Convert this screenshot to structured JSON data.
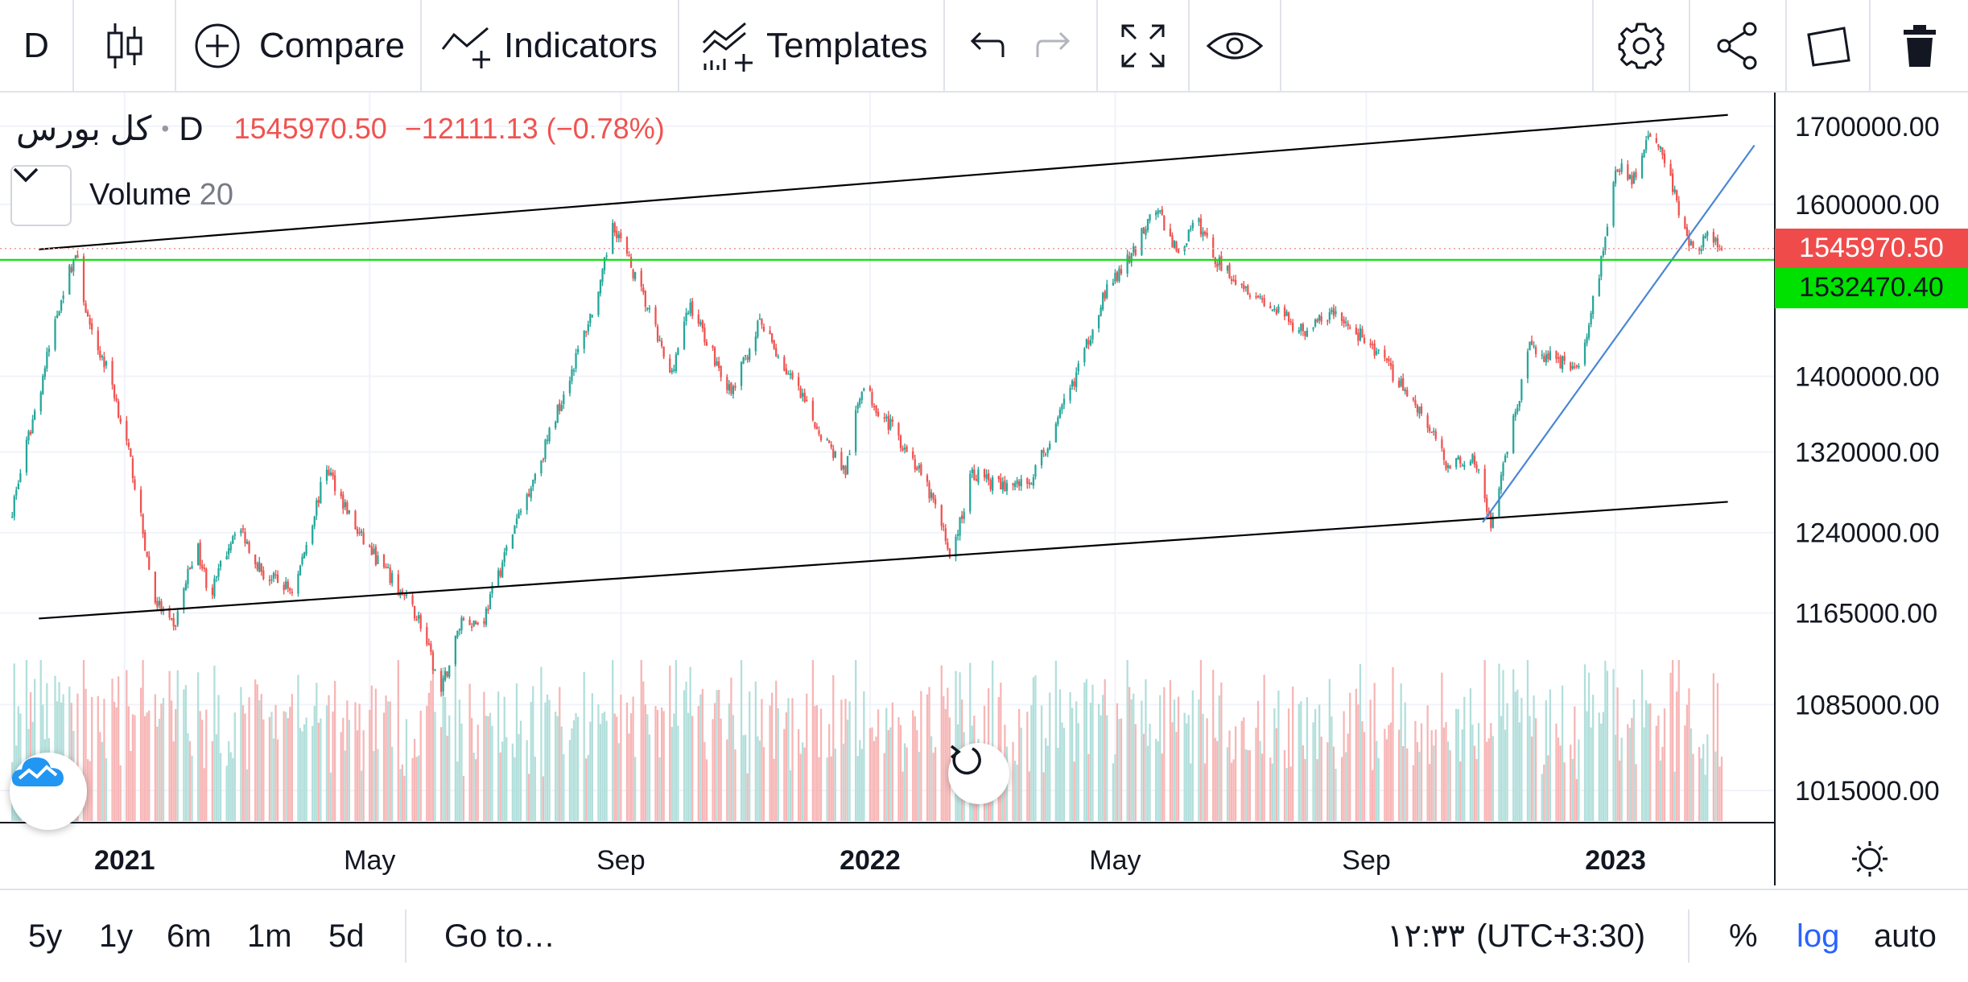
{
  "toolbar": {
    "interval_label": "D",
    "compare_label": "Compare",
    "indicators_label": "Indicators",
    "templates_label": "Templates",
    "icons": [
      "candles-icon",
      "plus-circle-icon",
      "indicators-icon",
      "templates-icon",
      "undo-icon",
      "redo-icon",
      "fullscreen-icon",
      "eye-icon",
      "gear-icon",
      "share-icon",
      "snapshot-icon",
      "trash-icon"
    ]
  },
  "legend": {
    "symbol": "کل بورس",
    "interval": "D",
    "last_price": "1545970.50",
    "change": "−12111.13 (−0.78%)",
    "volume_name": "Volume",
    "volume_length": "20"
  },
  "price_axis": {
    "labels": [
      "1700000.00",
      "1600000.00",
      "1400000.00",
      "1320000.00",
      "1240000.00",
      "1165000.00",
      "1085000.00",
      "1015000.00"
    ],
    "last_price_tag": "1545970.50",
    "last_price_color": "#f04b4b",
    "line_tag": "1532470.40",
    "line_tag_color": "#00e100",
    "scale": "log"
  },
  "time_axis": {
    "labels": [
      {
        "text": "2021",
        "bold": true
      },
      {
        "text": "May",
        "bold": false
      },
      {
        "text": "Sep",
        "bold": false
      },
      {
        "text": "2022",
        "bold": true
      },
      {
        "text": "May",
        "bold": false
      },
      {
        "text": "Sep",
        "bold": false
      },
      {
        "text": "2023",
        "bold": true
      }
    ]
  },
  "bottom_bar": {
    "ranges": [
      "5y",
      "1y",
      "6m",
      "1m",
      "5d"
    ],
    "goto_label": "Go to…",
    "time": "۱۲:۳۳",
    "timezone": "(UTC+3:30)",
    "percent_label": "%",
    "log_label": "log",
    "auto_label": "auto",
    "log_active_color": "#2962ff"
  },
  "chart_data": {
    "type": "candlestick",
    "symbol": "کل بورس",
    "interval": "D",
    "y_scale": "log",
    "ylim": [
      990000,
      1745000
    ],
    "x_range": [
      "2020-11-01",
      "2023-03-20"
    ],
    "colors": {
      "up": "#26a69a",
      "down": "#ef5350",
      "vol_up": "#b2dfdb",
      "vol_down": "#f7b6b6"
    },
    "close_path": [
      [
        "2020-11-05",
        1245000
      ],
      [
        "2020-11-20",
        1380000
      ],
      [
        "2020-12-01",
        1490000
      ],
      [
        "2020-12-08",
        1540000
      ],
      [
        "2020-12-15",
        1450000
      ],
      [
        "2020-12-25",
        1400000
      ],
      [
        "2021-01-05",
        1300000
      ],
      [
        "2021-01-15",
        1180000
      ],
      [
        "2021-01-25",
        1150000
      ],
      [
        "2021-02-05",
        1230000
      ],
      [
        "2021-02-12",
        1180000
      ],
      [
        "2021-02-25",
        1250000
      ],
      [
        "2021-03-10",
        1200000
      ],
      [
        "2021-03-25",
        1185000
      ],
      [
        "2021-04-10",
        1305000
      ],
      [
        "2021-04-25",
        1240000
      ],
      [
        "2021-05-10",
        1200000
      ],
      [
        "2021-05-25",
        1160000
      ],
      [
        "2021-06-05",
        1095000
      ],
      [
        "2021-06-15",
        1160000
      ],
      [
        "2021-06-25",
        1155000
      ],
      [
        "2021-07-10",
        1240000
      ],
      [
        "2021-07-25",
        1320000
      ],
      [
        "2021-08-10",
        1420000
      ],
      [
        "2021-08-22",
        1500000
      ],
      [
        "2021-08-28",
        1580000
      ],
      [
        "2021-09-05",
        1530000
      ],
      [
        "2021-09-15",
        1470000
      ],
      [
        "2021-09-25",
        1400000
      ],
      [
        "2021-10-05",
        1480000
      ],
      [
        "2021-10-15",
        1430000
      ],
      [
        "2021-10-25",
        1380000
      ],
      [
        "2021-11-08",
        1460000
      ],
      [
        "2021-11-20",
        1410000
      ],
      [
        "2021-12-05",
        1350000
      ],
      [
        "2021-12-20",
        1300000
      ],
      [
        "2021-12-28",
        1390000
      ],
      [
        "2022-01-10",
        1350000
      ],
      [
        "2022-01-20",
        1320000
      ],
      [
        "2022-02-01",
        1270000
      ],
      [
        "2022-02-10",
        1215000
      ],
      [
        "2022-02-20",
        1300000
      ],
      [
        "2022-03-05",
        1285000
      ],
      [
        "2022-03-20",
        1290000
      ],
      [
        "2022-04-01",
        1340000
      ],
      [
        "2022-04-15",
        1420000
      ],
      [
        "2022-04-25",
        1490000
      ],
      [
        "2022-05-10",
        1540000
      ],
      [
        "2022-05-20",
        1600000
      ],
      [
        "2022-06-01",
        1540000
      ],
      [
        "2022-06-10",
        1580000
      ],
      [
        "2022-06-20",
        1530000
      ],
      [
        "2022-07-05",
        1500000
      ],
      [
        "2022-07-20",
        1470000
      ],
      [
        "2022-08-01",
        1450000
      ],
      [
        "2022-08-15",
        1470000
      ],
      [
        "2022-09-01",
        1440000
      ],
      [
        "2022-09-15",
        1400000
      ],
      [
        "2022-09-28",
        1360000
      ],
      [
        "2022-10-10",
        1310000
      ],
      [
        "2022-10-25",
        1310000
      ],
      [
        "2022-11-01",
        1245000
      ],
      [
        "2022-11-10",
        1330000
      ],
      [
        "2022-11-20",
        1430000
      ],
      [
        "2022-12-01",
        1420000
      ],
      [
        "2022-12-15",
        1410000
      ],
      [
        "2022-12-25",
        1530000
      ],
      [
        "2023-01-01",
        1650000
      ],
      [
        "2023-01-10",
        1630000
      ],
      [
        "2023-01-18",
        1690000
      ],
      [
        "2023-01-25",
        1660000
      ],
      [
        "2023-02-01",
        1590000
      ],
      [
        "2023-02-08",
        1545000
      ],
      [
        "2023-02-15",
        1560000
      ],
      [
        "2023-02-22",
        1546000
      ]
    ],
    "drawings": [
      {
        "kind": "trend_line",
        "name": "upper-channel",
        "color": "#000000",
        "from": [
          "2020-11-20",
          1545000
        ],
        "to": [
          "2023-02-25",
          1715000
        ]
      },
      {
        "kind": "trend_line",
        "name": "lower-channel",
        "color": "#000000",
        "from": [
          "2020-11-20",
          1160000
        ],
        "to": [
          "2023-02-25",
          1270000
        ]
      },
      {
        "kind": "trend_line",
        "name": "rising-trend",
        "color": "#4a86d4",
        "from": [
          "2022-10-28",
          1250000
        ],
        "to": [
          "2023-03-10",
          1675000
        ]
      },
      {
        "kind": "horizontal_line",
        "name": "support",
        "color": "#00e100",
        "value": 1532470.4
      }
    ],
    "price_line_value": 1545970.5
  }
}
